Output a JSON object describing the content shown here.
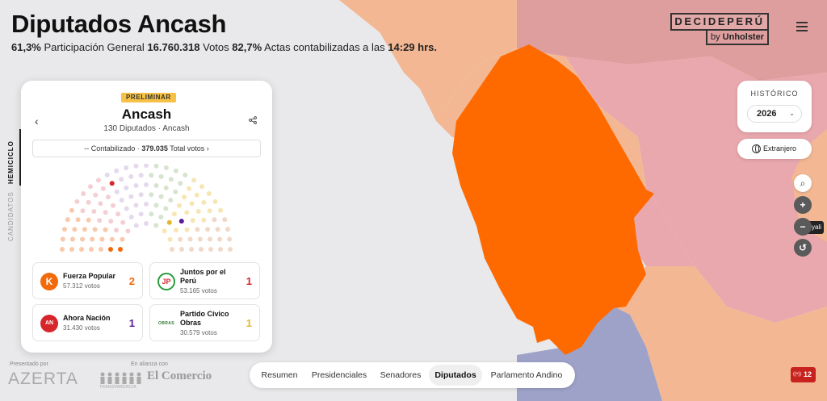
{
  "header": {
    "title": "Diputados Ancash",
    "participation_pct": "61,3%",
    "participation_label": "Participación General",
    "votes": "16.760.318",
    "votes_label": "Votos",
    "actas_pct": "82,7%",
    "actas_label": "Actas contabilizadas a las",
    "time": "14:29 hrs."
  },
  "brand": {
    "name": "DECIDEPERÚ",
    "by": "by",
    "sponsor": "Unholster"
  },
  "controls": {
    "historico_label": "HISTÓRICO",
    "year": "2026",
    "extranjero": "Extranjero",
    "tooltip": "yali"
  },
  "panel": {
    "badge": "PRELIMINAR",
    "region": "Ancash",
    "subtitle": "130 Diputados · Ancash",
    "totals_prefix": "-- Contabilizado ·",
    "totals_value": "379.035",
    "totals_suffix": "Total votos ›",
    "sidetabs": [
      "HEMICICLO",
      "CANDIDATOS"
    ]
  },
  "parties": [
    {
      "name": "Fuerza Popular",
      "votes": "57.312 votos",
      "seats": "2",
      "color": "#f26a0a",
      "logo": "K"
    },
    {
      "name": "Juntos por el Perú",
      "votes": "53.165 votos",
      "seats": "1",
      "color": "#d7262b",
      "logo": "JP"
    },
    {
      "name": "Ahora Nación",
      "votes": "31.430 votos",
      "seats": "1",
      "color": "#5b1a9e",
      "logo": "AN"
    },
    {
      "name": "Partido Cívico Obras",
      "votes": "30.579 votos",
      "seats": "1",
      "color": "#e2b92c",
      "logo": "OBRAS"
    }
  ],
  "footer": {
    "presented_by": "Presentado por",
    "azerta": "AZERTA",
    "alliance": "En alianza con",
    "transparencia": "TRANSPARENCIA",
    "el_comercio": "El Comercio"
  },
  "nav": [
    "Resumen",
    "Presidenciales",
    "Senadores",
    "Diputados",
    "Parlamento Andino"
  ],
  "nav_active": "Diputados",
  "live_count": "12",
  "hemicycle": {
    "highlighted": [
      {
        "party": "Fuerza Popular",
        "color": "#f26a0a",
        "count": 2
      },
      {
        "party": "Juntos por el Perú",
        "color": "#d7262b",
        "count": 1
      },
      {
        "party": "Ahora Nación",
        "color": "#5b1a9e",
        "count": 1
      },
      {
        "party": "Partido Cívico Obras",
        "color": "#e2b92c",
        "count": 1
      }
    ],
    "muted_colors": [
      "#f9c9ad",
      "#f3cfd4",
      "#e5d9ec",
      "#d6e4d0",
      "#f6e6b5",
      "#f0d9c8"
    ]
  },
  "colors": {
    "ancash": "#ff6a00",
    "region_peach": "#f3b893",
    "region_pink": "#df9e9e",
    "region_rose": "#e9a8ad",
    "ocean_purple": "#9ea2c8",
    "background": "#e9e8ea"
  }
}
